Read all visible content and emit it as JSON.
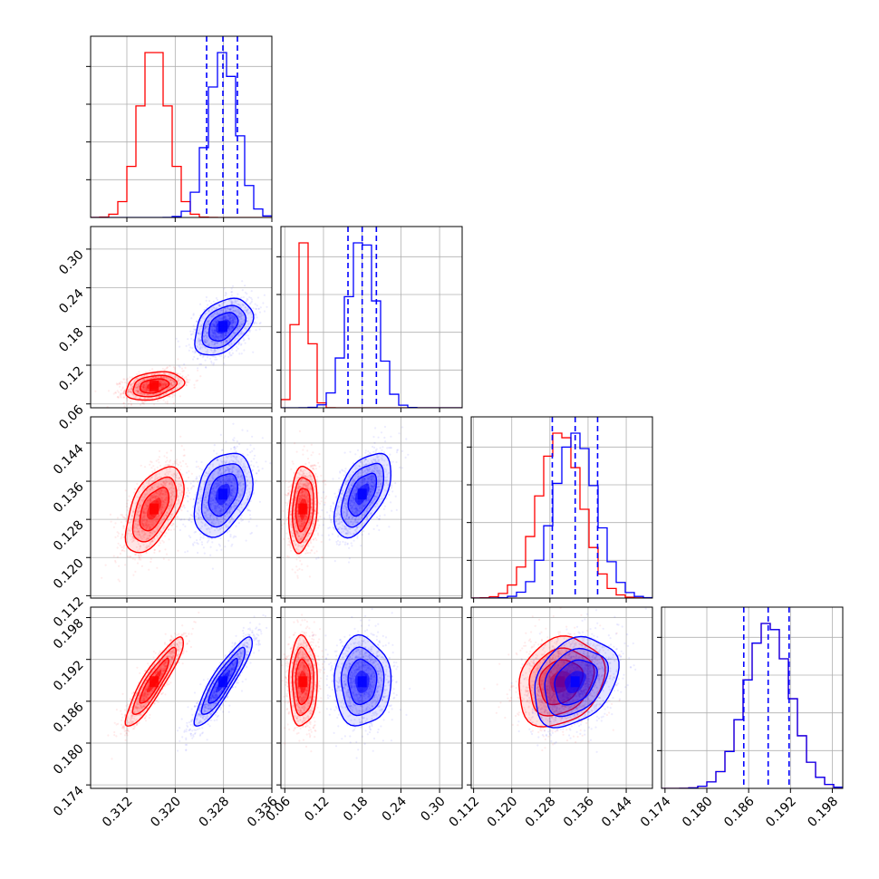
{
  "chart_data": {
    "type": "corner",
    "colors": {
      "red": "#ff0000",
      "blue": "#0000ff",
      "grid": "#b0b0b0",
      "frame": "#000000"
    },
    "axes": {
      "p0": {
        "range": [
          0.306,
          0.336
        ],
        "ticks": [
          0.312,
          0.32,
          0.328,
          0.336
        ],
        "labels": [
          "0.312",
          "0.320",
          "0.328",
          "0.336"
        ]
      },
      "p1": {
        "range": [
          0.054,
          0.335
        ],
        "ticks": [
          0.06,
          0.12,
          0.18,
          0.24,
          0.3
        ],
        "labels": [
          "0.06",
          "0.12",
          "0.18",
          "0.24",
          "0.30"
        ]
      },
      "p2": {
        "range": [
          0.1115,
          0.1495
        ],
        "ticks": [
          0.112,
          0.12,
          0.128,
          0.136,
          0.144
        ],
        "labels": [
          "0.112",
          "0.120",
          "0.128",
          "0.136",
          "0.144"
        ]
      },
      "p3": {
        "range": [
          0.1735,
          0.1995
        ],
        "ticks": [
          0.174,
          0.18,
          0.186,
          0.192,
          0.198
        ],
        "labels": [
          "0.174",
          "0.180",
          "0.186",
          "0.192",
          "0.198"
        ]
      }
    },
    "parameters": [
      {
        "axis": "p0",
        "red": {
          "mean": 0.3165,
          "sd": 0.0024
        },
        "blue": {
          "mean": 0.3279,
          "sd": 0.0024
        },
        "quantiles": [
          0.3252,
          0.3279,
          0.3303
        ]
      },
      {
        "axis": "p1",
        "red": {
          "mean": 0.088,
          "sd": 0.011
        },
        "blue": {
          "mean": 0.18,
          "sd": 0.022
        },
        "quantiles": [
          0.158,
          0.18,
          0.202
        ]
      },
      {
        "axis": "p2",
        "red": {
          "mean": 0.1302,
          "sd": 0.0045
        },
        "blue": {
          "mean": 0.1333,
          "sd": 0.0044
        },
        "quantiles": [
          0.1285,
          0.1333,
          0.138
        ]
      },
      {
        "axis": "p3",
        "red": {
          "mean": 0.1888,
          "sd": 0.0032
        },
        "blue": {
          "mean": 0.1888,
          "sd": 0.0032
        },
        "quantiles": [
          0.1853,
          0.1888,
          0.1918
        ]
      }
    ],
    "correlations": {
      "red": {
        "1-0": 0.3,
        "2-0": 0.55,
        "2-1": 0.2,
        "3-0": 0.9,
        "3-1": 0.0,
        "3-2": 0.2
      },
      "blue": {
        "1-0": 0.4,
        "2-0": 0.35,
        "2-1": 0.55,
        "3-0": 0.9,
        "3-1": 0.0,
        "3-2": 0.3
      }
    },
    "contour_levels_sigma": [
      0.5,
      1.0,
      1.5,
      2.0
    ],
    "quantile_line_series": "blue",
    "grid": true
  }
}
